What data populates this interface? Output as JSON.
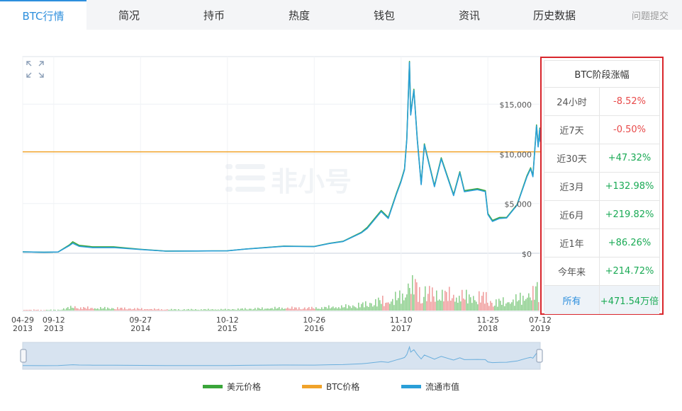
{
  "tabs": [
    {
      "label": "BTC行情",
      "active": true
    },
    {
      "label": "简况"
    },
    {
      "label": "持币"
    },
    {
      "label": "热度"
    },
    {
      "label": "钱包"
    },
    {
      "label": "资讯"
    },
    {
      "label": "历史数据"
    }
  ],
  "report_label": "问题提交",
  "watermark": "非小号",
  "panel": {
    "title": "BTC阶段涨幅",
    "rows": [
      {
        "label": "24小时",
        "value": "-8.52%",
        "trend": "neg"
      },
      {
        "label": "近7天",
        "value": "-0.50%",
        "trend": "neg"
      },
      {
        "label": "近30天",
        "value": "+47.32%",
        "trend": "pos"
      },
      {
        "label": "近3月",
        "value": "+132.98%",
        "trend": "pos"
      },
      {
        "label": "近6月",
        "value": "+219.82%",
        "trend": "pos"
      },
      {
        "label": "近1年",
        "value": "+86.26%",
        "trend": "pos"
      },
      {
        "label": "今年来",
        "value": "+214.72%",
        "trend": "pos"
      },
      {
        "label": "所有",
        "value": "+471.54万倍",
        "trend": "pos",
        "link": true
      }
    ]
  },
  "colors": {
    "usd": "#3aa53a",
    "btc": "#f0a32a",
    "mcap": "#2a9fd8",
    "vol_up": "#8fd08f",
    "vol_down": "#f0a0a0",
    "accent": "#2d8fdd",
    "highlight": "#d9262c"
  },
  "chart_data": {
    "type": "line",
    "y_ticks": [
      "$0",
      "$5,000",
      "$10,000",
      "$15,000"
    ],
    "ylim": [
      0,
      19500
    ],
    "btc_reference_value": 10200,
    "x_ticks": [
      {
        "date": "2013-04-29",
        "top": "04-29",
        "bottom": "2013"
      },
      {
        "date": "2013-09-12",
        "top": "09-12",
        "bottom": "2013"
      },
      {
        "date": "2014-09-27",
        "top": "09-27",
        "bottom": "2014"
      },
      {
        "date": "2015-10-12",
        "top": "10-12",
        "bottom": "2015"
      },
      {
        "date": "2016-10-26",
        "top": "10-26",
        "bottom": "2016"
      },
      {
        "date": "2017-11-10",
        "top": "11-10",
        "bottom": "2017"
      },
      {
        "date": "2018-11-25",
        "top": "11-25",
        "bottom": "2018"
      },
      {
        "date": "2019-07-12",
        "top": "07-12",
        "bottom": "2019"
      }
    ],
    "x_range": [
      "2013-04-29",
      "2019-07-12"
    ],
    "legend": [
      {
        "name": "美元价格",
        "color": "#3aa53a"
      },
      {
        "name": "BTC价格",
        "color": "#f0a32a"
      },
      {
        "name": "流通市值",
        "color": "#2a9fd8"
      }
    ],
    "series": [
      {
        "name": "美元价格",
        "points": [
          [
            "2013-04-29",
            140
          ],
          [
            "2013-08-01",
            100
          ],
          [
            "2013-10-01",
            130
          ],
          [
            "2013-11-20",
            850
          ],
          [
            "2013-12-04",
            1150
          ],
          [
            "2014-01-01",
            800
          ],
          [
            "2014-03-01",
            650
          ],
          [
            "2014-06-01",
            650
          ],
          [
            "2014-09-27",
            400
          ],
          [
            "2015-01-15",
            220
          ],
          [
            "2015-06-01",
            230
          ],
          [
            "2015-10-12",
            250
          ],
          [
            "2016-01-01",
            430
          ],
          [
            "2016-06-15",
            720
          ],
          [
            "2016-10-26",
            680
          ],
          [
            "2017-01-01",
            1000
          ],
          [
            "2017-03-01",
            1200
          ],
          [
            "2017-05-20",
            2100
          ],
          [
            "2017-06-15",
            2600
          ],
          [
            "2017-08-15",
            4300
          ],
          [
            "2017-09-15",
            3600
          ],
          [
            "2017-10-20",
            6000
          ],
          [
            "2017-11-10",
            7300
          ],
          [
            "2017-11-25",
            8500
          ],
          [
            "2017-12-05",
            11500
          ],
          [
            "2017-12-17",
            19300
          ],
          [
            "2017-12-22",
            14000
          ],
          [
            "2018-01-05",
            16500
          ],
          [
            "2018-01-20",
            11500
          ],
          [
            "2018-02-06",
            7000
          ],
          [
            "2018-02-20",
            11000
          ],
          [
            "2018-04-05",
            6800
          ],
          [
            "2018-05-05",
            9600
          ],
          [
            "2018-06-28",
            5900
          ],
          [
            "2018-07-25",
            8200
          ],
          [
            "2018-08-14",
            6300
          ],
          [
            "2018-10-10",
            6500
          ],
          [
            "2018-11-14",
            6300
          ],
          [
            "2018-11-25",
            4000
          ],
          [
            "2018-12-15",
            3300
          ],
          [
            "2019-01-15",
            3600
          ],
          [
            "2019-02-15",
            3600
          ],
          [
            "2019-04-02",
            4900
          ],
          [
            "2019-05-15",
            7800
          ],
          [
            "2019-05-31",
            8600
          ],
          [
            "2019-06-10",
            7800
          ],
          [
            "2019-06-26",
            12900
          ],
          [
            "2019-07-03",
            10800
          ],
          [
            "2019-07-10",
            12600
          ],
          [
            "2019-07-12",
            11300
          ]
        ]
      },
      {
        "name": "流通市值",
        "points": [
          [
            "2013-04-29",
            140
          ],
          [
            "2013-08-01",
            100
          ],
          [
            "2013-10-01",
            130
          ],
          [
            "2013-11-20",
            780
          ],
          [
            "2013-12-04",
            1000
          ],
          [
            "2014-01-01",
            700
          ],
          [
            "2014-03-01",
            560
          ],
          [
            "2014-06-01",
            580
          ],
          [
            "2014-09-27",
            380
          ],
          [
            "2015-01-15",
            210
          ],
          [
            "2015-06-01",
            225
          ],
          [
            "2015-10-12",
            245
          ],
          [
            "2016-01-01",
            420
          ],
          [
            "2016-06-15",
            700
          ],
          [
            "2016-10-26",
            670
          ],
          [
            "2017-01-01",
            980
          ],
          [
            "2017-03-01",
            1180
          ],
          [
            "2017-05-20",
            2050
          ],
          [
            "2017-06-15",
            2500
          ],
          [
            "2017-08-15",
            4200
          ],
          [
            "2017-09-15",
            3500
          ],
          [
            "2017-10-20",
            5900
          ],
          [
            "2017-11-10",
            7200
          ],
          [
            "2017-11-25",
            8400
          ],
          [
            "2017-12-05",
            11400
          ],
          [
            "2017-12-17",
            19200
          ],
          [
            "2017-12-22",
            13900
          ],
          [
            "2018-01-05",
            16400
          ],
          [
            "2018-01-20",
            11400
          ],
          [
            "2018-02-06",
            6900
          ],
          [
            "2018-02-20",
            10900
          ],
          [
            "2018-04-05",
            6700
          ],
          [
            "2018-05-05",
            9500
          ],
          [
            "2018-06-28",
            5800
          ],
          [
            "2018-07-25",
            8100
          ],
          [
            "2018-08-14",
            6200
          ],
          [
            "2018-10-10",
            6400
          ],
          [
            "2018-11-14",
            6200
          ],
          [
            "2018-11-25",
            3900
          ],
          [
            "2018-12-15",
            3200
          ],
          [
            "2019-01-15",
            3500
          ],
          [
            "2019-02-15",
            3550
          ],
          [
            "2019-04-02",
            4850
          ],
          [
            "2019-05-15",
            7700
          ],
          [
            "2019-05-31",
            8500
          ],
          [
            "2019-06-10",
            7700
          ],
          [
            "2019-06-26",
            12800
          ],
          [
            "2019-07-03",
            10700
          ],
          [
            "2019-07-10",
            12500
          ],
          [
            "2019-07-12",
            11200
          ]
        ]
      }
    ]
  }
}
